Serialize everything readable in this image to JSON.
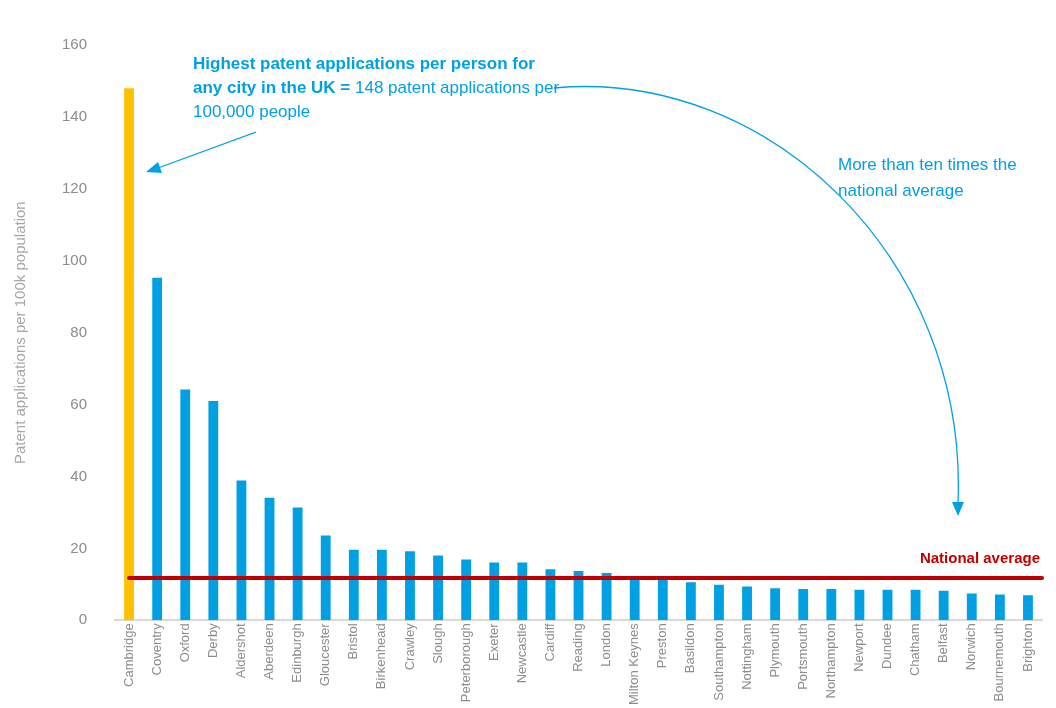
{
  "chart_data": {
    "type": "bar",
    "ylabel": "Patent applications per 100k population",
    "categories": [
      "Cambridge",
      "Coventry",
      "Oxford",
      "Derby",
      "Aldershot",
      "Aberdeen",
      "Edinburgh",
      "Gloucester",
      "Bristol",
      "Birkenhead",
      "Crawley",
      "Slough",
      "Peterborough",
      "Exeter",
      "Newcastle",
      "Cardiff",
      "Reading",
      "London",
      "Milton Keynes",
      "Preston",
      "Basildon",
      "Southampton",
      "Nottingham",
      "Plymouth",
      "Portsmouth",
      "Northampton",
      "Newport",
      "Dundee",
      "Chatham",
      "Belfast",
      "Norwich",
      "Bournemouth",
      "Brighton"
    ],
    "values": [
      148,
      95.3,
      64.2,
      61,
      38.9,
      34.1,
      31.4,
      23.6,
      19.6,
      19.6,
      19.2,
      18,
      16.9,
      16.1,
      16.1,
      14.2,
      13.7,
      13.2,
      11.6,
      11.4,
      10.6,
      9.9,
      9.4,
      8.9,
      8.7,
      8.7,
      8.5,
      8.5,
      8.5,
      8.2,
      7.5,
      7.2,
      7
    ],
    "colors": [
      "#ffc000",
      "#00a0e3",
      "#00a0e3",
      "#00a0e3",
      "#00a0e3",
      "#00a0e3",
      "#00a0e3",
      "#00a0e3",
      "#00a0e3",
      "#00a0e3",
      "#00a0e3",
      "#00a0e3",
      "#00a0e3",
      "#00a0e3",
      "#00a0e3",
      "#00a0e3",
      "#00a0e3",
      "#00a0e3",
      "#00a0e3",
      "#00a0e3",
      "#00a0e3",
      "#00a0e3",
      "#00a0e3",
      "#00a0e3",
      "#00a0e3",
      "#00a0e3",
      "#00a0e3",
      "#00a0e3",
      "#00a0e3",
      "#00a0e3",
      "#00a0e3",
      "#00a0e3",
      "#00a0e3"
    ],
    "ylim": [
      0,
      160
    ],
    "yticks": [
      0,
      20,
      40,
      60,
      80,
      100,
      120,
      140,
      160
    ],
    "grid": false,
    "legend": false,
    "ref_lines": [
      {
        "axis": "y",
        "value": 11.8,
        "label": "National average",
        "color": "#c00000"
      }
    ],
    "annotations": [
      "Highest patent applications per person for any city in the UK =",
      "148 patent applications per 100,000 people",
      "More than ten times the national average"
    ]
  }
}
